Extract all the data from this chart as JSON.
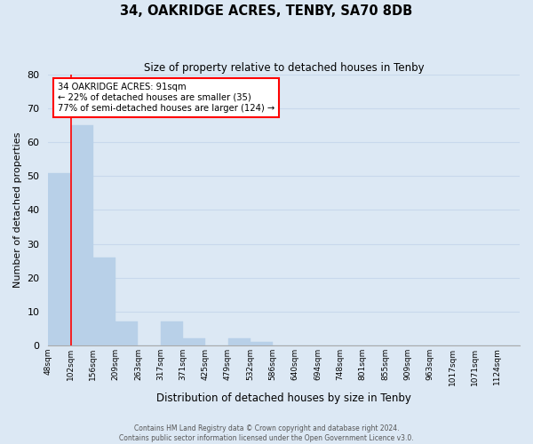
{
  "title": "34, OAKRIDGE ACRES, TENBY, SA70 8DB",
  "subtitle": "Size of property relative to detached houses in Tenby",
  "xlabel": "Distribution of detached houses by size in Tenby",
  "ylabel": "Number of detached properties",
  "bar_labels": [
    "48sqm",
    "102sqm",
    "156sqm",
    "209sqm",
    "263sqm",
    "317sqm",
    "371sqm",
    "425sqm",
    "479sqm",
    "532sqm",
    "586sqm",
    "640sqm",
    "694sqm",
    "748sqm",
    "801sqm",
    "855sqm",
    "909sqm",
    "963sqm",
    "1017sqm",
    "1071sqm",
    "1124sqm"
  ],
  "bar_values": [
    51,
    65,
    26,
    7,
    0,
    7,
    2,
    0,
    2,
    1,
    0,
    0,
    0,
    0,
    0,
    0,
    0,
    0,
    0,
    0,
    0
  ],
  "bar_color": "#b8d0e8",
  "bar_edge_color": "#b8d0e8",
  "grid_color": "#c8d8ec",
  "background_color": "#dce8f4",
  "ylim": [
    0,
    80
  ],
  "yticks": [
    0,
    10,
    20,
    30,
    40,
    50,
    60,
    70,
    80
  ],
  "annotation_text_line1": "34 OAKRIDGE ACRES: 91sqm",
  "annotation_text_line2": "← 22% of detached houses are smaller (35)",
  "annotation_text_line3": "77% of semi-detached houses are larger (124) →",
  "annotation_box_color": "white",
  "annotation_box_edge_color": "red",
  "footer_line1": "Contains HM Land Registry data © Crown copyright and database right 2024.",
  "footer_line2": "Contains public sector information licensed under the Open Government Licence v3.0."
}
